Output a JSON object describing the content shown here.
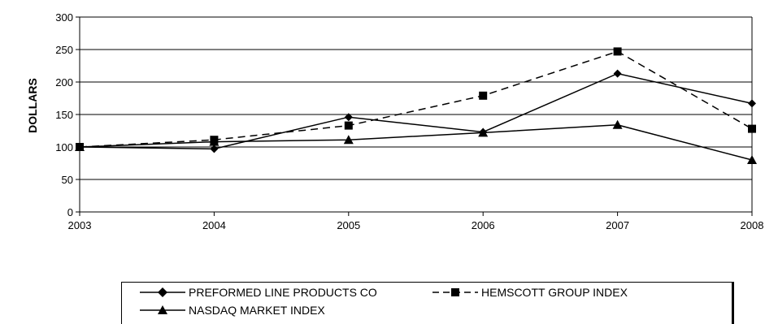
{
  "chart_data": {
    "type": "line",
    "x": [
      "2003",
      "2004",
      "2005",
      "2006",
      "2007",
      "2008"
    ],
    "ylabel": "DOLLARS",
    "xlabel": "",
    "ylim": [
      0,
      300
    ],
    "yticks": [
      "0",
      "50",
      "100",
      "150",
      "200",
      "250",
      "300"
    ],
    "grid": true,
    "legend_position": "bottom",
    "series": [
      {
        "name": "PREFORMED LINE PRODUCTS CO",
        "values": [
          100,
          97,
          146,
          123,
          213,
          167
        ],
        "marker": "diamond",
        "line": "solid"
      },
      {
        "name": "HEMSCOTT GROUP INDEX",
        "values": [
          100,
          111,
          133,
          179,
          247,
          128
        ],
        "marker": "square",
        "line": "dashed"
      },
      {
        "name": "NASDAQ MARKET INDEX",
        "values": [
          100,
          108,
          111,
          122,
          134,
          80
        ],
        "marker": "triangle",
        "line": "solid"
      }
    ]
  }
}
